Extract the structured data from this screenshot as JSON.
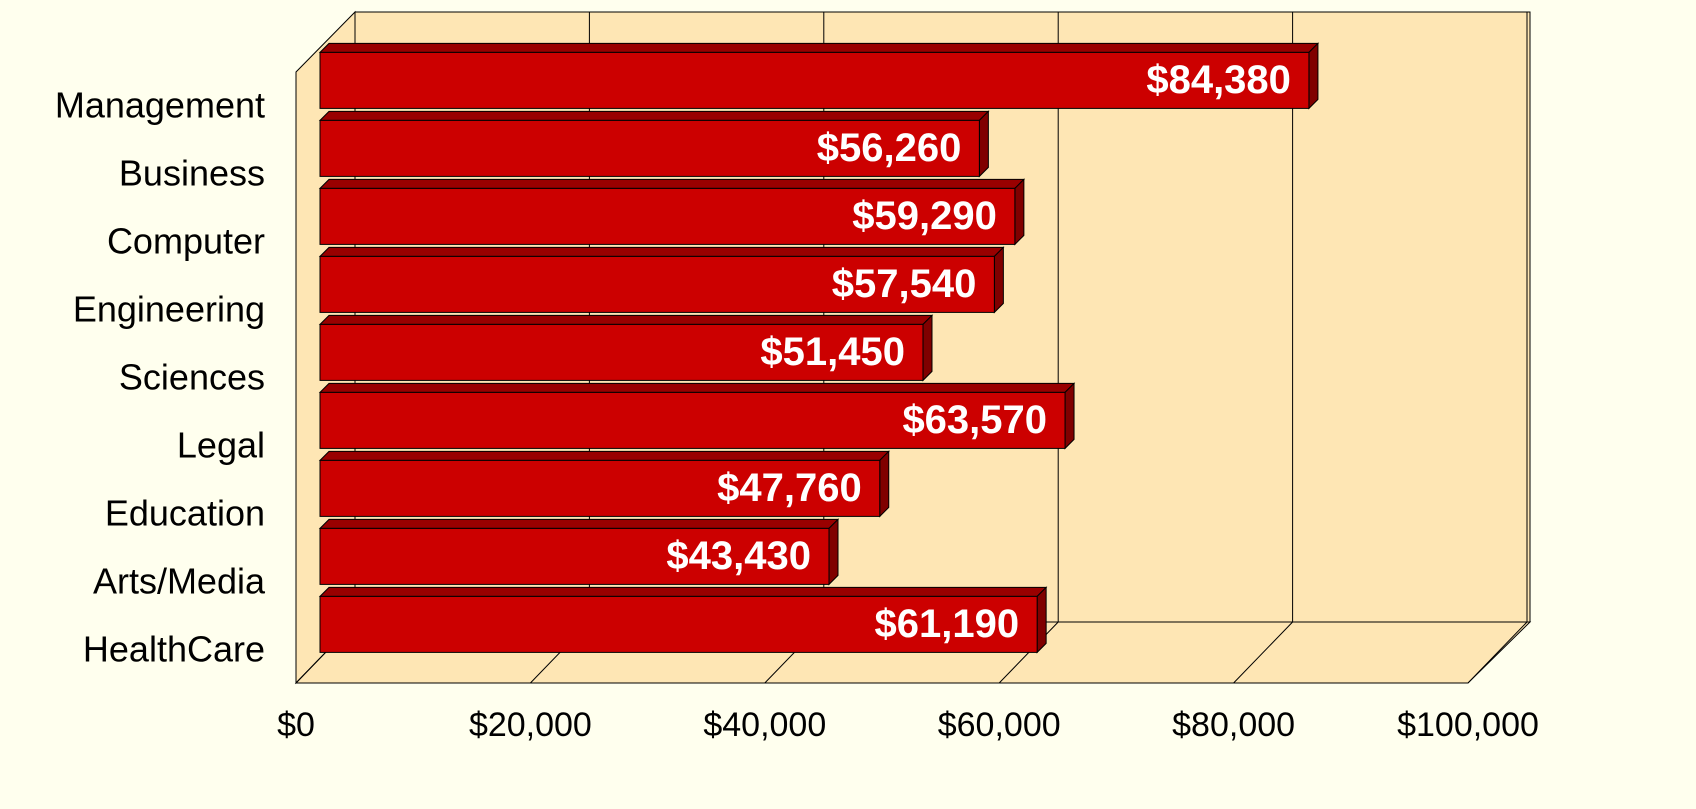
{
  "chart_data": {
    "type": "bar",
    "orientation": "horizontal",
    "categories": [
      "Management",
      "Business",
      "Computer",
      "Engineering",
      "Sciences",
      "Legal",
      "Education",
      "Arts/Media",
      "HealthCare"
    ],
    "values": [
      84380,
      56260,
      59290,
      57540,
      51450,
      63570,
      47760,
      43430,
      61190
    ],
    "value_labels": [
      "$84,380",
      "$56,260",
      "$59,290",
      "$57,540",
      "$51,450",
      "$63,570",
      "$47,760",
      "$43,430",
      "$61,190"
    ],
    "color": "#cc0000",
    "xlim": [
      0,
      100000
    ],
    "xticks": [
      {
        "value": 0,
        "label": "$0"
      },
      {
        "value": 20000,
        "label": "$20,000"
      },
      {
        "value": 40000,
        "label": "$40,000"
      },
      {
        "value": 60000,
        "label": "$60,000"
      },
      {
        "value": 80000,
        "label": "$80,000"
      },
      {
        "value": 100000,
        "label": "$100,000"
      }
    ],
    "grid": true
  }
}
